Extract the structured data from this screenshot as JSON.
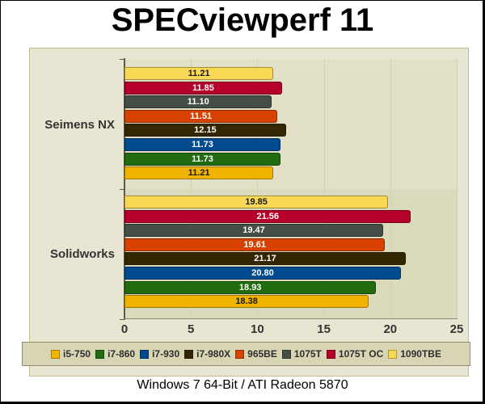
{
  "title": "SPECviewperf 11",
  "subtitle": "Windows 7 64-Bit / ATI Radeon 5870",
  "chart_data": {
    "type": "bar",
    "orientation": "horizontal",
    "title": "SPECviewperf 11",
    "subtitle": "Windows 7 64-Bit / ATI Radeon 5870",
    "xlabel": "",
    "ylabel": "",
    "xlim": [
      0,
      25
    ],
    "x_ticks": [
      "0",
      "5",
      "10",
      "15",
      "20",
      "25"
    ],
    "grid": true,
    "legend_position": "bottom",
    "categories": [
      "Seimens NX",
      "Solidworks"
    ],
    "series": [
      {
        "name": "i5-750",
        "color": "#f0b400",
        "text_color": "#1a1a1a",
        "values": [
          11.21,
          18.38
        ]
      },
      {
        "name": "i7-860",
        "color": "#216b10",
        "text_color": "#ffffff",
        "values": [
          11.73,
          18.93
        ]
      },
      {
        "name": "i7-930",
        "color": "#004a8f",
        "text_color": "#ffffff",
        "values": [
          11.73,
          20.8
        ]
      },
      {
        "name": "i7-980X",
        "color": "#342600",
        "text_color": "#ffffff",
        "values": [
          12.15,
          21.17
        ]
      },
      {
        "name": "965BE",
        "color": "#d84200",
        "text_color": "#ffffff",
        "values": [
          11.51,
          19.61
        ]
      },
      {
        "name": "1075T",
        "color": "#454e46",
        "text_color": "#ffffff",
        "values": [
          11.1,
          19.47
        ]
      },
      {
        "name": "1075T OC",
        "color": "#b4002a",
        "text_color": "#ffffff",
        "values": [
          11.85,
          21.56
        ]
      },
      {
        "name": "1090TBE",
        "color": "#f8d855",
        "text_color": "#1a1a1a",
        "values": [
          11.21,
          19.85
        ]
      }
    ],
    "value_labels": {
      "Seimens NX": [
        "11.21",
        "11.85",
        "11.10",
        "11.51",
        "12.15",
        "11.73",
        "11.73",
        "11.21"
      ],
      "Solidworks": [
        "19.85",
        "21.56",
        "19.47",
        "19.61",
        "21.17",
        "20.80",
        "18.93",
        "18.38"
      ]
    },
    "value_label_order": "top-to-bottom: 1090TBE, 1075T OC, 1075T, 965BE, i7-980X, i7-930, i7-860, i5-750"
  },
  "colors": {
    "panel_bg": "#e8e6d3",
    "plot_bg": "#dfddc1",
    "legend_bg": "#d7d5b4"
  }
}
